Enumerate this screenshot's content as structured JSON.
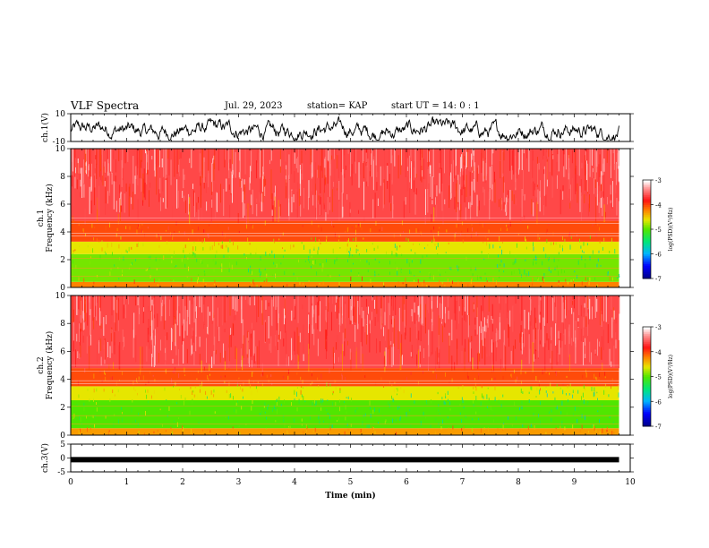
{
  "header": {
    "title": "VLF Spectra",
    "date": "Jul. 29, 2023",
    "station": "station= KAP",
    "start_ut": "start UT =  14: 0  : 1"
  },
  "chart_data": [
    {
      "type": "line",
      "panel": "ch1-waveform",
      "ylabel": "ch.1(V)",
      "ylim": [
        -10,
        10
      ],
      "y_ticks": [
        "10",
        "-10"
      ],
      "xlim": [
        0,
        10
      ],
      "x_end_data": 9.8,
      "series_color": "#000000"
    },
    {
      "type": "heatmap",
      "panel": "ch1-spectrogram",
      "ylabel": "ch.1\nFrequency (kHz)",
      "ylim": [
        0,
        10
      ],
      "y_ticks": [
        "0",
        "2",
        "4",
        "6",
        "8",
        "10"
      ],
      "xlim": [
        0,
        10
      ],
      "x_end_data": 9.8,
      "colorbar": {
        "label": "log(PSD)(V²/Hz)",
        "range": [
          -7,
          -3
        ],
        "ticks": [
          "-3",
          "-4",
          "-5",
          "-6",
          "-7"
        ]
      },
      "bands": [
        {
          "freq_kHz": [
            0,
            0.4
          ],
          "level": -4.2
        },
        {
          "freq_kHz": [
            0.4,
            2.4
          ],
          "level": -4.9
        },
        {
          "freq_kHz": [
            2.4,
            3.3
          ],
          "level": -4.6
        },
        {
          "freq_kHz": [
            3.3,
            4.8
          ],
          "level": -4.0
        },
        {
          "freq_kHz": [
            4.8,
            10
          ],
          "level": -3.6
        }
      ]
    },
    {
      "type": "heatmap",
      "panel": "ch2-spectrogram",
      "ylabel": "ch.2\nFrequency (kHz)",
      "ylim": [
        0,
        10
      ],
      "y_ticks": [
        "0",
        "2",
        "4",
        "6",
        "8",
        "10"
      ],
      "xlim": [
        0,
        10
      ],
      "x_end_data": 9.8,
      "colorbar": {
        "label": "log(PSD)(V²/Hz)",
        "range": [
          -7,
          -3
        ],
        "ticks": [
          "-3",
          "-4",
          "-5",
          "-6",
          "-7"
        ]
      },
      "bands": [
        {
          "freq_kHz": [
            0,
            0.5
          ],
          "level": -4.3
        },
        {
          "freq_kHz": [
            0.5,
            2.5
          ],
          "level": -5.0
        },
        {
          "freq_kHz": [
            2.5,
            3.5
          ],
          "level": -4.6
        },
        {
          "freq_kHz": [
            3.5,
            4.8
          ],
          "level": -4.0
        },
        {
          "freq_kHz": [
            4.8,
            10
          ],
          "level": -3.6
        }
      ]
    },
    {
      "type": "line",
      "panel": "ch3-waveform",
      "ylabel": "ch.3(V)",
      "ylim": [
        -5,
        5
      ],
      "y_ticks": [
        "5",
        "0",
        "-5"
      ],
      "xlim": [
        0,
        10
      ],
      "x_end_data": 9.8,
      "level": -0.6,
      "series_color": "#000000"
    }
  ],
  "x_axis": {
    "label": "Time (min)",
    "ticks": [
      "0",
      "1",
      "2",
      "3",
      "4",
      "5",
      "6",
      "7",
      "8",
      "9",
      "10"
    ]
  }
}
